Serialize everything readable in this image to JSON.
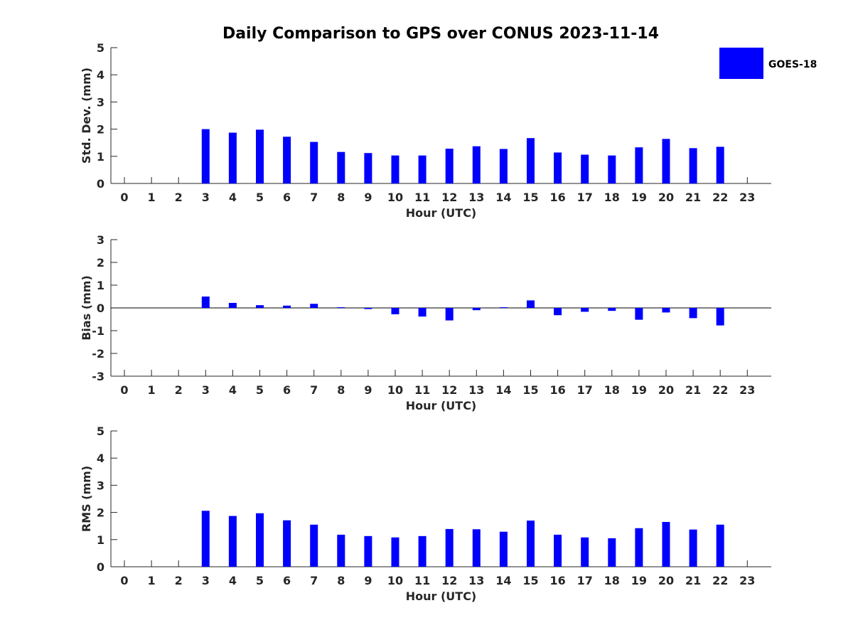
{
  "title": "Daily Comparison to GPS over CONUS 2023-11-14",
  "legend": {
    "label": "GOES-18",
    "color": "#0000ff",
    "position": "top-right"
  },
  "chart_data": [
    {
      "type": "bar",
      "name": "std-dev",
      "xlabel": "Hour (UTC)",
      "ylabel": "Std. Dev. (mm)",
      "ylim": [
        0,
        5
      ],
      "yticks": [
        0,
        1,
        2,
        3,
        4,
        5
      ],
      "categories": [
        "0",
        "1",
        "2",
        "3",
        "4",
        "5",
        "6",
        "7",
        "8",
        "9",
        "10",
        "11",
        "12",
        "13",
        "14",
        "15",
        "16",
        "17",
        "18",
        "19",
        "20",
        "21",
        "22",
        "23"
      ],
      "series": [
        {
          "name": "GOES-18",
          "color": "#0000ff",
          "values": [
            null,
            null,
            null,
            2.0,
            1.87,
            1.98,
            1.72,
            1.53,
            1.16,
            1.12,
            1.03,
            1.03,
            1.28,
            1.37,
            1.27,
            1.67,
            1.14,
            1.06,
            1.03,
            1.33,
            1.64,
            1.3,
            1.35,
            null
          ]
        }
      ]
    },
    {
      "type": "bar",
      "name": "bias",
      "xlabel": "Hour (UTC)",
      "ylabel": "Bias (mm)",
      "ylim": [
        -3,
        3
      ],
      "yticks": [
        -3,
        -2,
        -1,
        0,
        1,
        2,
        3
      ],
      "zero_line": true,
      "categories": [
        "0",
        "1",
        "2",
        "3",
        "4",
        "5",
        "6",
        "7",
        "8",
        "9",
        "10",
        "11",
        "12",
        "13",
        "14",
        "15",
        "16",
        "17",
        "18",
        "19",
        "20",
        "21",
        "22",
        "23"
      ],
      "series": [
        {
          "name": "GOES-18",
          "color": "#0000ff",
          "values": [
            null,
            null,
            null,
            0.5,
            0.22,
            0.12,
            0.1,
            0.18,
            0.03,
            -0.05,
            -0.28,
            -0.38,
            -0.55,
            -0.1,
            0.03,
            0.33,
            -0.32,
            -0.17,
            -0.13,
            -0.52,
            -0.2,
            -0.45,
            -0.77,
            null
          ]
        }
      ]
    },
    {
      "type": "bar",
      "name": "rms",
      "xlabel": "Hour (UTC)",
      "ylabel": "RMS (mm)",
      "ylim": [
        0,
        5
      ],
      "yticks": [
        0,
        1,
        2,
        3,
        4,
        5
      ],
      "categories": [
        "0",
        "1",
        "2",
        "3",
        "4",
        "5",
        "6",
        "7",
        "8",
        "9",
        "10",
        "11",
        "12",
        "13",
        "14",
        "15",
        "16",
        "17",
        "18",
        "19",
        "20",
        "21",
        "22",
        "23"
      ],
      "series": [
        {
          "name": "GOES-18",
          "color": "#0000ff",
          "values": [
            null,
            null,
            null,
            2.06,
            1.87,
            1.97,
            1.71,
            1.55,
            1.18,
            1.13,
            1.08,
            1.13,
            1.39,
            1.38,
            1.29,
            1.7,
            1.18,
            1.08,
            1.05,
            1.42,
            1.65,
            1.37,
            1.55,
            null
          ]
        }
      ]
    }
  ]
}
